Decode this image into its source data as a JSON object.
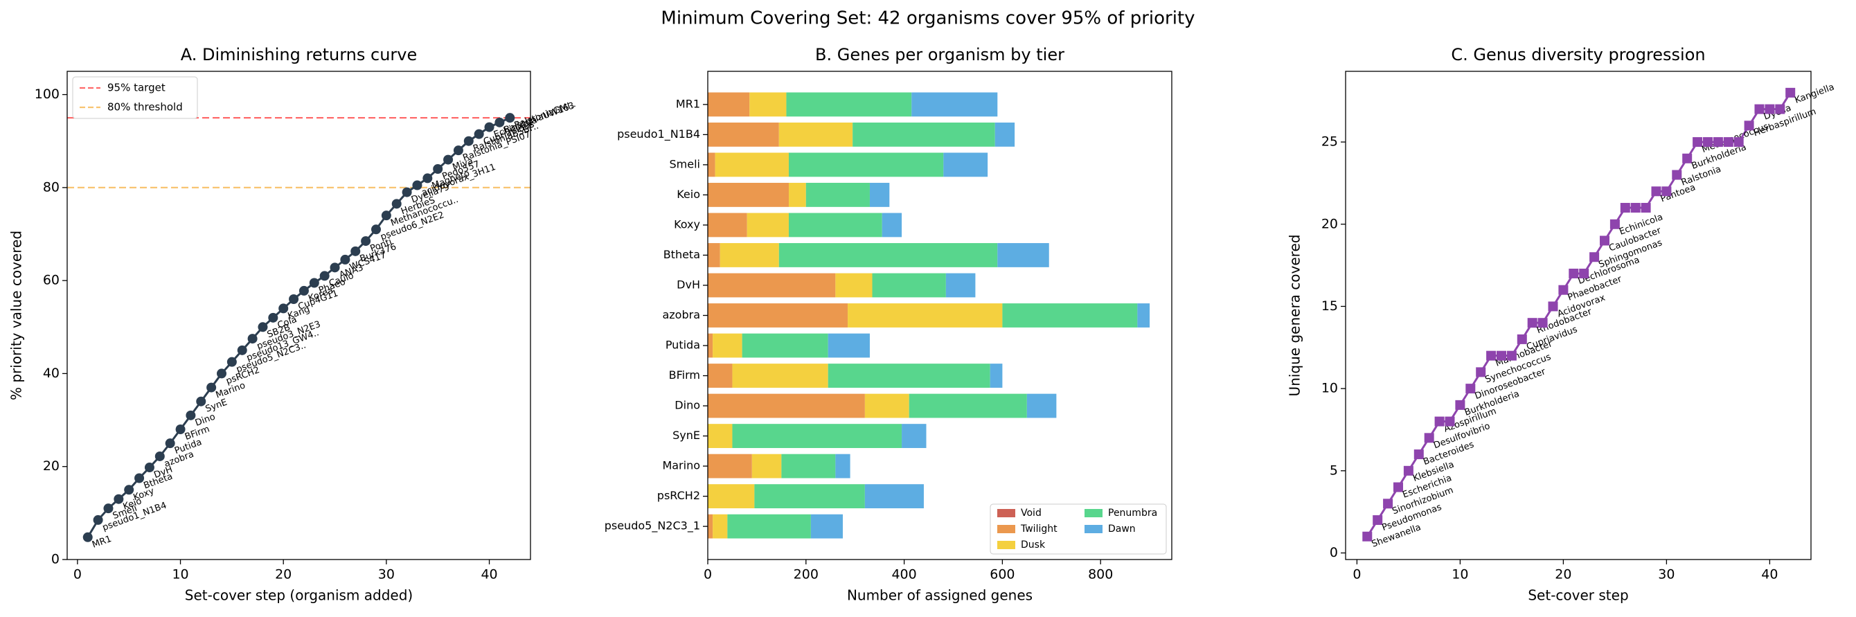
{
  "title": "Minimum Covering Set: 42 organisms cover 95% of priority",
  "chart_data": [
    {
      "type": "line",
      "title": "A. Diminishing returns curve",
      "xlabel": "Set-cover step (organism added)",
      "ylabel": "% priority value covered",
      "x": [
        1,
        2,
        3,
        4,
        5,
        6,
        7,
        8,
        9,
        10,
        11,
        12,
        13,
        14,
        15,
        16,
        17,
        18,
        19,
        20,
        21,
        22,
        23,
        24,
        25,
        26,
        27,
        28,
        29,
        30,
        31,
        32,
        33,
        34,
        35,
        36,
        37,
        38,
        39,
        40,
        41,
        42
      ],
      "series": [
        {
          "color": "#2c3e50",
          "marker": "circle",
          "values": [
            4.8,
            8.5,
            11,
            13,
            15,
            17.5,
            19.8,
            22.2,
            25,
            28,
            31,
            34,
            37,
            40,
            42.5,
            45,
            47.5,
            50,
            52,
            54,
            56,
            57.8,
            59.5,
            61,
            62.8,
            64.5,
            66.3,
            68.5,
            71,
            74,
            76.5,
            79,
            80.5,
            82,
            84,
            86,
            88,
            90,
            91.5,
            93,
            94,
            95
          ],
          "point_labels": [
            "MR1",
            "pseudo1_N1B4",
            "Smeli",
            "Keio",
            "Koxy",
            "Btheta",
            "DvH",
            "azobra",
            "Putida",
            "BFirm",
            "Dino",
            "SynE",
            "Marino",
            "psRCH2",
            "pseudo5_N2C3..",
            "pseudo13_GW4..",
            "pseudo3_N2E3",
            "SB2B",
            "Cola",
            "Kang",
            "Cup4G11",
            "Korea",
            "Phaeo",
            "Caulo",
            "ANA3",
            "WCS417",
            "Burk376",
            "Ponti",
            "pseudo6_N2E2",
            "Methanococcu..",
            "HerbieS",
            "Dyella79",
            "acidovorax_3H11",
            "Magneto",
            "Pedo557",
            "Miya",
            "Ralstonia_PSI07",
            "RalstoniaBSBF..",
            "Cupriavidus",
            "Echinicola",
            "RalstoniaUW163",
            "RalstoniaGMI.."
          ]
        }
      ],
      "hlines": [
        {
          "value": 95,
          "label": "95% target",
          "color": "#ff6b6b"
        },
        {
          "value": 80,
          "label": "80% threshold",
          "color": "#f8c471"
        }
      ],
      "legend": "upper left",
      "xlim": [
        -1,
        44
      ],
      "xticks": [
        0,
        10,
        20,
        30,
        40
      ],
      "ylim": [
        0,
        105
      ],
      "yticks": [
        0,
        20,
        40,
        60,
        80,
        100
      ]
    },
    {
      "type": "barh_stacked",
      "title": "B. Genes per organism by tier",
      "xlabel": "Number of assigned genes",
      "categories": [
        "MR1",
        "pseudo1_N1B4",
        "Smeli",
        "Keio",
        "Koxy",
        "Btheta",
        "DvH",
        "azobra",
        "Putida",
        "BFirm",
        "Dino",
        "SynE",
        "Marino",
        "psRCH2",
        "pseudo5_N2C3_1"
      ],
      "series": [
        {
          "name": "Void",
          "color": "#cd6155",
          "values": [
            0,
            0,
            0,
            0,
            0,
            0,
            0,
            0,
            0,
            0,
            0,
            0,
            0,
            0,
            0
          ]
        },
        {
          "name": "Twilight",
          "color": "#eb984e",
          "values": [
            85,
            145,
            15,
            165,
            80,
            25,
            260,
            285,
            10,
            50,
            320,
            0,
            90,
            0,
            10
          ]
        },
        {
          "name": "Dusk",
          "color": "#f4d03f",
          "values": [
            75,
            150,
            150,
            35,
            85,
            120,
            75,
            315,
            60,
            195,
            90,
            50,
            60,
            95,
            30
          ]
        },
        {
          "name": "Penumbra",
          "color": "#58d68d",
          "values": [
            255,
            290,
            315,
            130,
            190,
            445,
            150,
            275,
            175,
            330,
            240,
            345,
            110,
            225,
            170
          ]
        },
        {
          "name": "Dawn",
          "color": "#5dade2",
          "values": [
            175,
            40,
            90,
            40,
            40,
            105,
            60,
            25,
            85,
            25,
            60,
            50,
            30,
            120,
            65
          ]
        }
      ],
      "legend": "lower right",
      "xlim": [
        0,
        945
      ],
      "xticks": [
        0,
        200,
        400,
        600,
        800
      ]
    },
    {
      "type": "line",
      "title": "C. Genus diversity progression",
      "xlabel": "Set-cover step",
      "ylabel": "Unique genera covered",
      "x": [
        1,
        2,
        3,
        4,
        5,
        6,
        7,
        8,
        9,
        10,
        11,
        12,
        13,
        14,
        15,
        16,
        17,
        18,
        19,
        20,
        21,
        22,
        23,
        24,
        25,
        26,
        27,
        28,
        29,
        30,
        31,
        32,
        33,
        34,
        35,
        36,
        37,
        38,
        39,
        40,
        41,
        42
      ],
      "series": [
        {
          "color": "#8e44ad",
          "marker": "square",
          "values": [
            1,
            2,
            3,
            4,
            5,
            6,
            7,
            8,
            8,
            9,
            10,
            11,
            12,
            12,
            12,
            13,
            14,
            14,
            15,
            16,
            17,
            17,
            18,
            19,
            20,
            21,
            21,
            21,
            22,
            22,
            23,
            24,
            25,
            25,
            25,
            25,
            25,
            26,
            27,
            27,
            27,
            28
          ],
          "point_labels": [
            "Shewanella",
            "Pseudomonas",
            "Sinorhizobium",
            "Escherichia",
            "Klebsiella",
            "Bacteroides",
            "Desulfovibrio",
            "Azospirillum",
            null,
            "Burkholderia",
            "Dinoroseobacter",
            "Synechococcus",
            "Marinobacter",
            null,
            null,
            "Cupriavidus",
            "Rhodobacter",
            null,
            "Acidovorax",
            "Phaeobacter",
            "Dechlorosoma",
            null,
            "Sphingomonas",
            "Caulobacter",
            "Echinicola",
            null,
            null,
            null,
            "Pantoea",
            null,
            "Ralstonia",
            "Burkholderia",
            "Methanococcus",
            null,
            null,
            null,
            null,
            "Herbaspirillum",
            "Dyella",
            null,
            null,
            "Kangiella"
          ]
        }
      ],
      "xlim": [
        -1.1,
        44
      ],
      "xticks": [
        0,
        10,
        20,
        30,
        40
      ],
      "ylim": [
        -0.4,
        29.3
      ],
      "yticks": [
        0,
        5,
        10,
        15,
        20,
        25
      ]
    }
  ]
}
